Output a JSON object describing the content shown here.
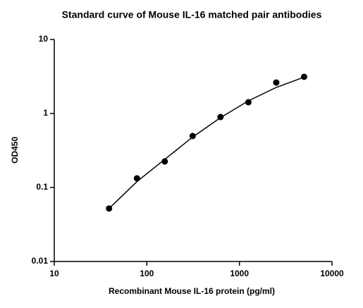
{
  "chart_data": {
    "type": "scatter",
    "title": "Standard curve of Mouse IL-16 matched pair antibodies",
    "x_label": "Recombinant Mouse IL-16 protein (pg/ml)",
    "y_label": "OD450",
    "x": [
      39.06,
      78.125,
      156.25,
      312.5,
      625,
      1250,
      2500,
      5000
    ],
    "values": [
      0.052,
      0.133,
      0.225,
      0.496,
      0.896,
      1.42,
      2.62,
      3.13
    ],
    "color": "#000000",
    "fit": {
      "x": [
        39.06,
        78.125,
        156.25,
        312.5,
        625,
        1250,
        2500,
        5000
      ],
      "values": [
        0.052,
        0.12,
        0.24,
        0.48,
        0.88,
        1.48,
        2.25,
        3.1
      ]
    },
    "xlog": true,
    "ylog": true,
    "xlim": [
      10,
      10000
    ],
    "ylim": [
      0.01,
      10
    ],
    "xticks": [
      10,
      100,
      1000,
      10000
    ],
    "yticks": [
      0.01,
      0.1,
      1,
      10
    ]
  }
}
